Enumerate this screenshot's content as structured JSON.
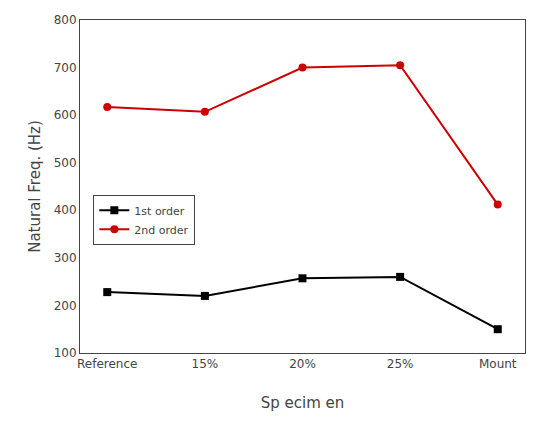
{
  "chart_data": {
    "type": "line",
    "categories": [
      "Reference",
      "15%",
      "20%",
      "25%",
      "Mount"
    ],
    "series": [
      {
        "name": "1st order",
        "color": "#000000",
        "marker": "square",
        "values": [
          228,
          220,
          257,
          260,
          150
        ]
      },
      {
        "name": "2nd order",
        "color": "#cc0000",
        "marker": "circle",
        "values": [
          617,
          607,
          700,
          705,
          412
        ]
      }
    ],
    "x_label": "Sp ecim en",
    "y_label": "Natural Freq. (Hz)",
    "ylim": [
      100,
      800
    ],
    "yticks": [
      100,
      200,
      300,
      400,
      500,
      600,
      700,
      800
    ],
    "grid": false,
    "legend": "left"
  }
}
